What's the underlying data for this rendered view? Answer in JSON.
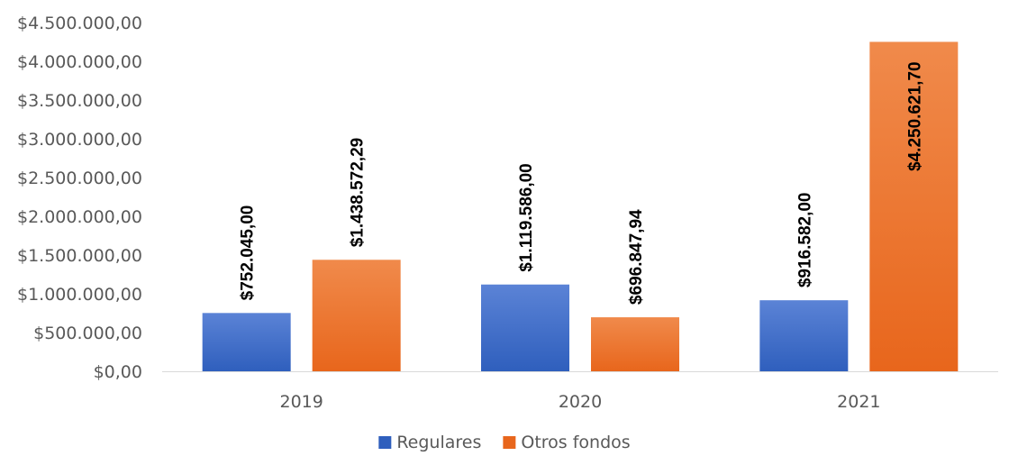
{
  "chart_data": {
    "type": "bar",
    "categories": [
      "2019",
      "2020",
      "2021"
    ],
    "series": [
      {
        "name": "Regulares",
        "values": [
          752045.0,
          1119586.0,
          916582.0
        ],
        "labels": [
          "$752.045,00",
          "$1.119.586,00",
          "$916.582,00"
        ],
        "color_top": "#5b83d6",
        "color_bottom": "#2f5fbd"
      },
      {
        "name": "Otros fondos",
        "values": [
          1438572.29,
          696847.94,
          4250621.7
        ],
        "labels": [
          "$1.438.572,29",
          "$696.847,94",
          "$4.250.621,70"
        ],
        "color_top": "#f08a4b",
        "color_bottom": "#e8661c"
      }
    ],
    "y_ticks": [
      {
        "value": 0,
        "label": "$0,00"
      },
      {
        "value": 500000,
        "label": "$500.000,00"
      },
      {
        "value": 1000000,
        "label": "$1.000.000,00"
      },
      {
        "value": 1500000,
        "label": "$1.500.000,00"
      },
      {
        "value": 2000000,
        "label": "$2.000.000,00"
      },
      {
        "value": 2500000,
        "label": "$2.500.000,00"
      },
      {
        "value": 3000000,
        "label": "$3.000.000,00"
      },
      {
        "value": 3500000,
        "label": "$3.500.000,00"
      },
      {
        "value": 4000000,
        "label": "$4.000.000,00"
      },
      {
        "value": 4500000,
        "label": "$4.500.000,00"
      }
    ],
    "ylim": [
      0,
      4500000
    ],
    "title": "",
    "xlabel": "",
    "ylabel": "",
    "grid": false,
    "legend_position": "bottom"
  }
}
